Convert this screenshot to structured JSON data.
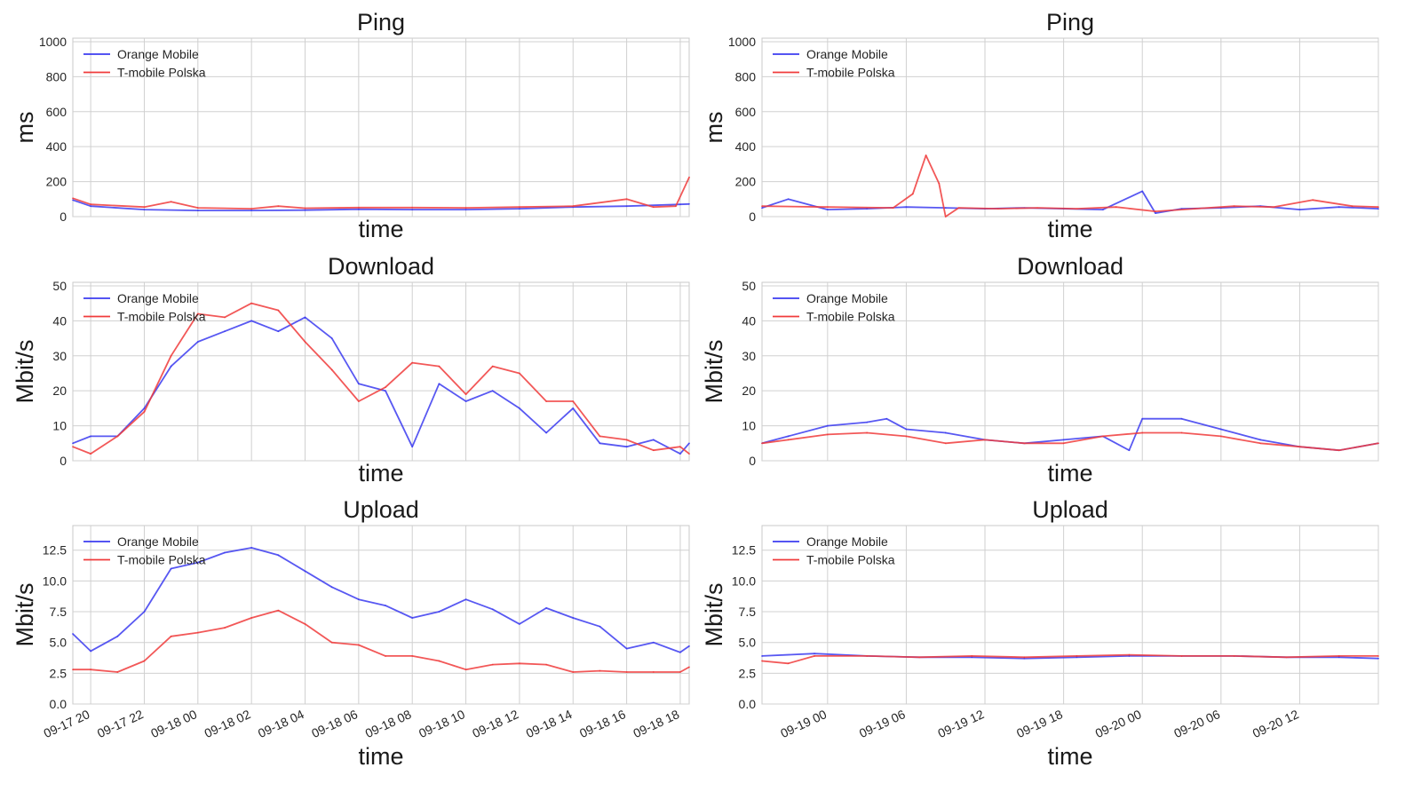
{
  "colors": {
    "orange_mobile": "#3b3bf0",
    "tmobile_polska": "#f03b3b",
    "grid": "#d0d0d0",
    "frame": "#c8c8c8"
  },
  "legend": [
    "Orange Mobile",
    "T-mobile Polska"
  ],
  "chart_data": [
    {
      "type": "line",
      "title": "Ping",
      "xlabel": "time",
      "ylabel": "ms",
      "ylim": [
        0,
        1020
      ],
      "yticks": [
        0,
        200,
        400,
        600,
        800,
        1000
      ],
      "xlim": [
        "2023-09-17T19:20",
        "2023-09-18T18:20"
      ],
      "xticks": [],
      "grid": true,
      "legend_position": "upper-left",
      "series": [
        {
          "name": "Orange Mobile",
          "x": [
            "2023-09-17T19:20",
            "2023-09-17T20:00",
            "2023-09-17T22:00",
            "2023-09-18T00:00",
            "2023-09-18T02:00",
            "2023-09-18T04:00",
            "2023-09-18T06:00",
            "2023-09-18T08:00",
            "2023-09-18T10:00",
            "2023-09-18T12:00",
            "2023-09-18T14:00",
            "2023-09-18T16:00",
            "2023-09-18T18:00",
            "2023-09-18T18:20"
          ],
          "values": [
            95,
            60,
            40,
            35,
            35,
            37,
            42,
            40,
            40,
            45,
            55,
            60,
            70,
            72
          ]
        },
        {
          "name": "T-mobile Polska",
          "x": [
            "2023-09-17T19:20",
            "2023-09-17T20:00",
            "2023-09-17T22:00",
            "2023-09-17T23:00",
            "2023-09-18T00:00",
            "2023-09-18T02:00",
            "2023-09-18T03:00",
            "2023-09-18T04:00",
            "2023-09-18T06:00",
            "2023-09-18T08:00",
            "2023-09-18T10:00",
            "2023-09-18T12:00",
            "2023-09-18T14:00",
            "2023-09-18T16:00",
            "2023-09-18T17:00",
            "2023-09-18T17:50",
            "2023-09-18T18:20"
          ],
          "values": [
            105,
            70,
            55,
            85,
            50,
            45,
            60,
            48,
            52,
            52,
            50,
            55,
            60,
            100,
            55,
            60,
            225
          ]
        }
      ]
    },
    {
      "type": "line",
      "title": "Ping",
      "xlabel": "time",
      "ylabel": "ms",
      "ylim": [
        0,
        1020
      ],
      "yticks": [
        0,
        200,
        400,
        600,
        800,
        1000
      ],
      "xlim": [
        "2023-09-18T19:00",
        "2023-09-20T18:00"
      ],
      "xticks": [],
      "grid": true,
      "legend_position": "upper-left",
      "series": [
        {
          "name": "Orange Mobile",
          "x": [
            "2023-09-18T19:00",
            "2023-09-18T21:00",
            "2023-09-19T00:00",
            "2023-09-19T03:00",
            "2023-09-19T06:00",
            "2023-09-19T09:00",
            "2023-09-19T12:00",
            "2023-09-19T15:00",
            "2023-09-19T18:00",
            "2023-09-19T21:00",
            "2023-09-20T00:00",
            "2023-09-20T01:00",
            "2023-09-20T03:00",
            "2023-09-20T06:00",
            "2023-09-20T09:00",
            "2023-09-20T12:00",
            "2023-09-20T15:00",
            "2023-09-20T18:00"
          ],
          "values": [
            50,
            100,
            40,
            45,
            55,
            50,
            45,
            50,
            45,
            40,
            145,
            20,
            45,
            50,
            60,
            40,
            55,
            45
          ]
        },
        {
          "name": "T-mobile Polska",
          "x": [
            "2023-09-18T19:00",
            "2023-09-19T00:00",
            "2023-09-19T05:00",
            "2023-09-19T06:30",
            "2023-09-19T07:30",
            "2023-09-19T08:30",
            "2023-09-19T09:00",
            "2023-09-19T10:00",
            "2023-09-19T13:00",
            "2023-09-19T16:00",
            "2023-09-19T19:00",
            "2023-09-19T22:00",
            "2023-09-20T01:00",
            "2023-09-20T04:00",
            "2023-09-20T07:00",
            "2023-09-20T10:00",
            "2023-09-20T13:00",
            "2023-09-20T16:00",
            "2023-09-20T18:00"
          ],
          "values": [
            60,
            55,
            50,
            130,
            350,
            190,
            0,
            50,
            45,
            50,
            45,
            55,
            30,
            45,
            60,
            55,
            95,
            60,
            55
          ]
        }
      ]
    },
    {
      "type": "line",
      "title": "Download",
      "xlabel": "time",
      "ylabel": "Mbit/s",
      "ylim": [
        0,
        51
      ],
      "yticks": [
        0,
        10,
        20,
        30,
        40,
        50
      ],
      "xlim": [
        "2023-09-17T19:20",
        "2023-09-18T18:20"
      ],
      "xticks": [],
      "grid": true,
      "legend_position": "upper-left",
      "series": [
        {
          "name": "Orange Mobile",
          "x": [
            "2023-09-17T19:20",
            "2023-09-17T20:00",
            "2023-09-17T21:00",
            "2023-09-17T22:00",
            "2023-09-17T23:00",
            "2023-09-18T00:00",
            "2023-09-18T01:00",
            "2023-09-18T02:00",
            "2023-09-18T03:00",
            "2023-09-18T04:00",
            "2023-09-18T05:00",
            "2023-09-18T06:00",
            "2023-09-18T07:00",
            "2023-09-18T08:00",
            "2023-09-18T09:00",
            "2023-09-18T10:00",
            "2023-09-18T11:00",
            "2023-09-18T12:00",
            "2023-09-18T13:00",
            "2023-09-18T14:00",
            "2023-09-18T15:00",
            "2023-09-18T16:00",
            "2023-09-18T17:00",
            "2023-09-18T18:00",
            "2023-09-18T18:20"
          ],
          "values": [
            5,
            7,
            7,
            15,
            27,
            34,
            37,
            40,
            37,
            41,
            35,
            22,
            20,
            4,
            22,
            17,
            20,
            15,
            8,
            15,
            5,
            4,
            6,
            2,
            5
          ]
        },
        {
          "name": "T-mobile Polska",
          "x": [
            "2023-09-17T19:20",
            "2023-09-17T20:00",
            "2023-09-17T21:00",
            "2023-09-17T22:00",
            "2023-09-17T23:00",
            "2023-09-18T00:00",
            "2023-09-18T01:00",
            "2023-09-18T02:00",
            "2023-09-18T03:00",
            "2023-09-18T04:00",
            "2023-09-18T05:00",
            "2023-09-18T06:00",
            "2023-09-18T07:00",
            "2023-09-18T08:00",
            "2023-09-18T09:00",
            "2023-09-18T10:00",
            "2023-09-18T11:00",
            "2023-09-18T12:00",
            "2023-09-18T13:00",
            "2023-09-18T14:00",
            "2023-09-18T15:00",
            "2023-09-18T16:00",
            "2023-09-18T17:00",
            "2023-09-18T18:00",
            "2023-09-18T18:20"
          ],
          "values": [
            4,
            2,
            7,
            14,
            30,
            42,
            41,
            45,
            43,
            34,
            26,
            17,
            21,
            28,
            27,
            19,
            27,
            25,
            17,
            17,
            7,
            6,
            3,
            4,
            2
          ]
        }
      ]
    },
    {
      "type": "line",
      "title": "Download",
      "xlabel": "time",
      "ylabel": "Mbit/s",
      "ylim": [
        0,
        51
      ],
      "yticks": [
        0,
        10,
        20,
        30,
        40,
        50
      ],
      "xlim": [
        "2023-09-18T19:00",
        "2023-09-20T18:00"
      ],
      "xticks": [],
      "grid": true,
      "legend_position": "upper-left",
      "series": [
        {
          "name": "Orange Mobile",
          "x": [
            "2023-09-18T19:00",
            "2023-09-18T21:00",
            "2023-09-19T00:00",
            "2023-09-19T03:00",
            "2023-09-19T04:30",
            "2023-09-19T06:00",
            "2023-09-19T09:00",
            "2023-09-19T12:00",
            "2023-09-19T15:00",
            "2023-09-19T18:00",
            "2023-09-19T21:00",
            "2023-09-19T23:00",
            "2023-09-20T00:00",
            "2023-09-20T03:00",
            "2023-09-20T06:00",
            "2023-09-20T09:00",
            "2023-09-20T12:00",
            "2023-09-20T15:00",
            "2023-09-20T18:00"
          ],
          "values": [
            5,
            7,
            10,
            11,
            12,
            9,
            8,
            6,
            5,
            6,
            7,
            3,
            12,
            12,
            9,
            6,
            4,
            3,
            5
          ]
        },
        {
          "name": "T-mobile Polska",
          "x": [
            "2023-09-18T19:00",
            "2023-09-18T21:00",
            "2023-09-19T00:00",
            "2023-09-19T03:00",
            "2023-09-19T06:00",
            "2023-09-19T09:00",
            "2023-09-19T12:00",
            "2023-09-19T15:00",
            "2023-09-19T18:00",
            "2023-09-19T21:00",
            "2023-09-20T00:00",
            "2023-09-20T03:00",
            "2023-09-20T06:00",
            "2023-09-20T09:00",
            "2023-09-20T12:00",
            "2023-09-20T15:00",
            "2023-09-20T18:00"
          ],
          "values": [
            5,
            6,
            7.5,
            8,
            7,
            5,
            6,
            5,
            5,
            7,
            8,
            8,
            7,
            5,
            4,
            3,
            5
          ]
        }
      ]
    },
    {
      "type": "line",
      "title": "Upload",
      "xlabel": "time",
      "ylabel": "Mbit/s",
      "ylim": [
        0,
        14.5
      ],
      "yticks": [
        "0.0",
        "2.5",
        "5.0",
        "7.5",
        "10.0",
        "12.5"
      ],
      "xlim": [
        "2023-09-17T19:20",
        "2023-09-18T18:20"
      ],
      "xticks": [
        {
          "t": "2023-09-17T20:00",
          "label": "09-17 20"
        },
        {
          "t": "2023-09-17T22:00",
          "label": "09-17 22"
        },
        {
          "t": "2023-09-18T00:00",
          "label": "09-18 00"
        },
        {
          "t": "2023-09-18T02:00",
          "label": "09-18 02"
        },
        {
          "t": "2023-09-18T04:00",
          "label": "09-18 04"
        },
        {
          "t": "2023-09-18T06:00",
          "label": "09-18 06"
        },
        {
          "t": "2023-09-18T08:00",
          "label": "09-18 08"
        },
        {
          "t": "2023-09-18T10:00",
          "label": "09-18 10"
        },
        {
          "t": "2023-09-18T12:00",
          "label": "09-18 12"
        },
        {
          "t": "2023-09-18T14:00",
          "label": "09-18 14"
        },
        {
          "t": "2023-09-18T16:00",
          "label": "09-18 16"
        },
        {
          "t": "2023-09-18T18:00",
          "label": "09-18 18"
        }
      ],
      "grid": true,
      "legend_position": "upper-left",
      "series": [
        {
          "name": "Orange Mobile",
          "x": [
            "2023-09-17T19:20",
            "2023-09-17T20:00",
            "2023-09-17T21:00",
            "2023-09-17T22:00",
            "2023-09-17T23:00",
            "2023-09-18T00:00",
            "2023-09-18T01:00",
            "2023-09-18T02:00",
            "2023-09-18T03:00",
            "2023-09-18T04:00",
            "2023-09-18T05:00",
            "2023-09-18T06:00",
            "2023-09-18T07:00",
            "2023-09-18T08:00",
            "2023-09-18T09:00",
            "2023-09-18T10:00",
            "2023-09-18T11:00",
            "2023-09-18T12:00",
            "2023-09-18T13:00",
            "2023-09-18T14:00",
            "2023-09-18T15:00",
            "2023-09-18T16:00",
            "2023-09-18T17:00",
            "2023-09-18T18:00",
            "2023-09-18T18:20"
          ],
          "values": [
            5.7,
            4.3,
            5.5,
            7.5,
            11,
            11.5,
            12.3,
            12.7,
            12.1,
            10.8,
            9.5,
            8.5,
            8,
            7,
            7.5,
            8.5,
            7.7,
            6.5,
            7.8,
            7,
            6.3,
            4.5,
            5,
            4.2,
            4.7
          ]
        },
        {
          "name": "T-mobile Polska",
          "x": [
            "2023-09-17T19:20",
            "2023-09-17T20:00",
            "2023-09-17T21:00",
            "2023-09-17T22:00",
            "2023-09-17T23:00",
            "2023-09-18T00:00",
            "2023-09-18T01:00",
            "2023-09-18T02:00",
            "2023-09-18T03:00",
            "2023-09-18T04:00",
            "2023-09-18T05:00",
            "2023-09-18T06:00",
            "2023-09-18T07:00",
            "2023-09-18T08:00",
            "2023-09-18T09:00",
            "2023-09-18T10:00",
            "2023-09-18T11:00",
            "2023-09-18T12:00",
            "2023-09-18T13:00",
            "2023-09-18T14:00",
            "2023-09-18T15:00",
            "2023-09-18T16:00",
            "2023-09-18T17:00",
            "2023-09-18T18:00",
            "2023-09-18T18:20"
          ],
          "values": [
            2.8,
            2.8,
            2.6,
            3.5,
            5.5,
            5.8,
            6.2,
            7,
            7.6,
            6.5,
            5,
            4.8,
            3.9,
            3.9,
            3.5,
            2.8,
            3.2,
            3.3,
            3.2,
            2.6,
            2.7,
            2.6,
            2.6,
            2.6,
            3
          ]
        }
      ]
    },
    {
      "type": "line",
      "title": "Upload",
      "xlabel": "time",
      "ylabel": "Mbit/s",
      "ylim": [
        0,
        14.5
      ],
      "yticks": [
        "0.0",
        "2.5",
        "5.0",
        "7.5",
        "10.0",
        "12.5"
      ],
      "xlim": [
        "2023-09-18T19:00",
        "2023-09-20T18:00"
      ],
      "xticks": [
        {
          "t": "2023-09-19T00:00",
          "label": "09-19 00"
        },
        {
          "t": "2023-09-19T06:00",
          "label": "09-19 06"
        },
        {
          "t": "2023-09-19T12:00",
          "label": "09-19 12"
        },
        {
          "t": "2023-09-19T18:00",
          "label": "09-19 18"
        },
        {
          "t": "2023-09-20T00:00",
          "label": "09-20 00"
        },
        {
          "t": "2023-09-20T06:00",
          "label": "09-20 06"
        },
        {
          "t": "2023-09-20T12:00",
          "label": "09-20 12"
        }
      ],
      "grid": true,
      "legend_position": "upper-left",
      "series": [
        {
          "name": "Orange Mobile",
          "x": [
            "2023-09-18T19:00",
            "2023-09-18T23:00",
            "2023-09-19T03:00",
            "2023-09-19T07:00",
            "2023-09-19T11:00",
            "2023-09-19T15:00",
            "2023-09-19T19:00",
            "2023-09-19T23:00",
            "2023-09-20T03:00",
            "2023-09-20T07:00",
            "2023-09-20T11:00",
            "2023-09-20T15:00",
            "2023-09-20T18:00"
          ],
          "values": [
            3.9,
            4.1,
            3.9,
            3.8,
            3.8,
            3.7,
            3.8,
            3.9,
            3.9,
            3.9,
            3.8,
            3.8,
            3.7
          ]
        },
        {
          "name": "T-mobile Polska",
          "x": [
            "2023-09-18T19:00",
            "2023-09-18T21:00",
            "2023-09-18T23:00",
            "2023-09-19T03:00",
            "2023-09-19T07:00",
            "2023-09-19T11:00",
            "2023-09-19T15:00",
            "2023-09-19T19:00",
            "2023-09-19T23:00",
            "2023-09-20T03:00",
            "2023-09-20T07:00",
            "2023-09-20T11:00",
            "2023-09-20T15:00",
            "2023-09-20T18:00"
          ],
          "values": [
            3.5,
            3.3,
            3.9,
            3.9,
            3.8,
            3.9,
            3.8,
            3.9,
            4,
            3.9,
            3.9,
            3.8,
            3.9,
            3.9
          ]
        }
      ]
    }
  ]
}
